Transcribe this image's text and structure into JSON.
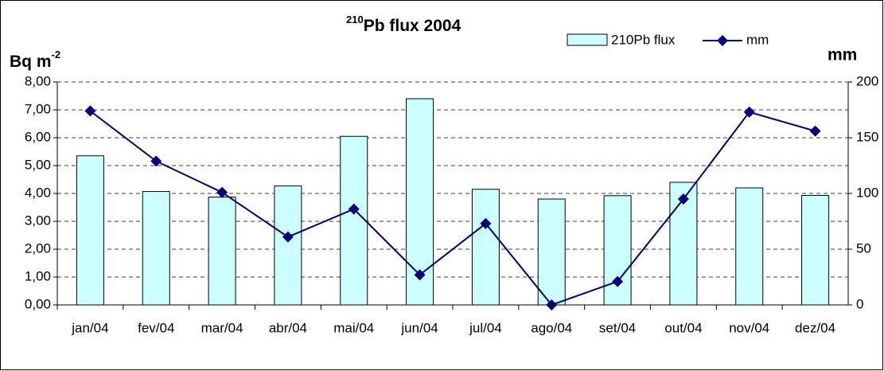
{
  "chart_data": {
    "type": "bar",
    "title_prefix": "210",
    "title": "Pb flux 2004",
    "y_label": "Bq m",
    "y_label_sup": "-2",
    "y2_label": "mm",
    "categories": [
      "jan/04",
      "fev/04",
      "mar/04",
      "abr/04",
      "mai/04",
      "jun/04",
      "jul/04",
      "ago/04",
      "set/04",
      "out/04",
      "nov/04",
      "dez/04"
    ],
    "series": [
      {
        "name": "210Pb flux",
        "type": "bar",
        "color": "#ccffff",
        "values": [
          5.35,
          4.07,
          3.87,
          4.27,
          6.05,
          7.4,
          4.15,
          3.8,
          3.92,
          4.4,
          4.2,
          3.93
        ]
      },
      {
        "name": "mm",
        "type": "line",
        "axis": "y2",
        "color": "#000080",
        "values": [
          174,
          129,
          101,
          61,
          86,
          27,
          73,
          0,
          21,
          95,
          173,
          156
        ]
      }
    ],
    "ylim": [
      0,
      8
    ],
    "yticks": [
      {
        "value": 0,
        "label": "0,00"
      },
      {
        "value": 1,
        "label": "1,00"
      },
      {
        "value": 2,
        "label": "2,00"
      },
      {
        "value": 3,
        "label": "3,00"
      },
      {
        "value": 4,
        "label": "4,00"
      },
      {
        "value": 5,
        "label": "5,00"
      },
      {
        "value": 6,
        "label": "6,00"
      },
      {
        "value": 7,
        "label": "7,00"
      },
      {
        "value": 8,
        "label": "8,00"
      }
    ],
    "y2lim": [
      0,
      200
    ],
    "y2ticks": [
      0,
      50,
      100,
      150,
      200
    ],
    "grid": true,
    "legend": "top"
  }
}
